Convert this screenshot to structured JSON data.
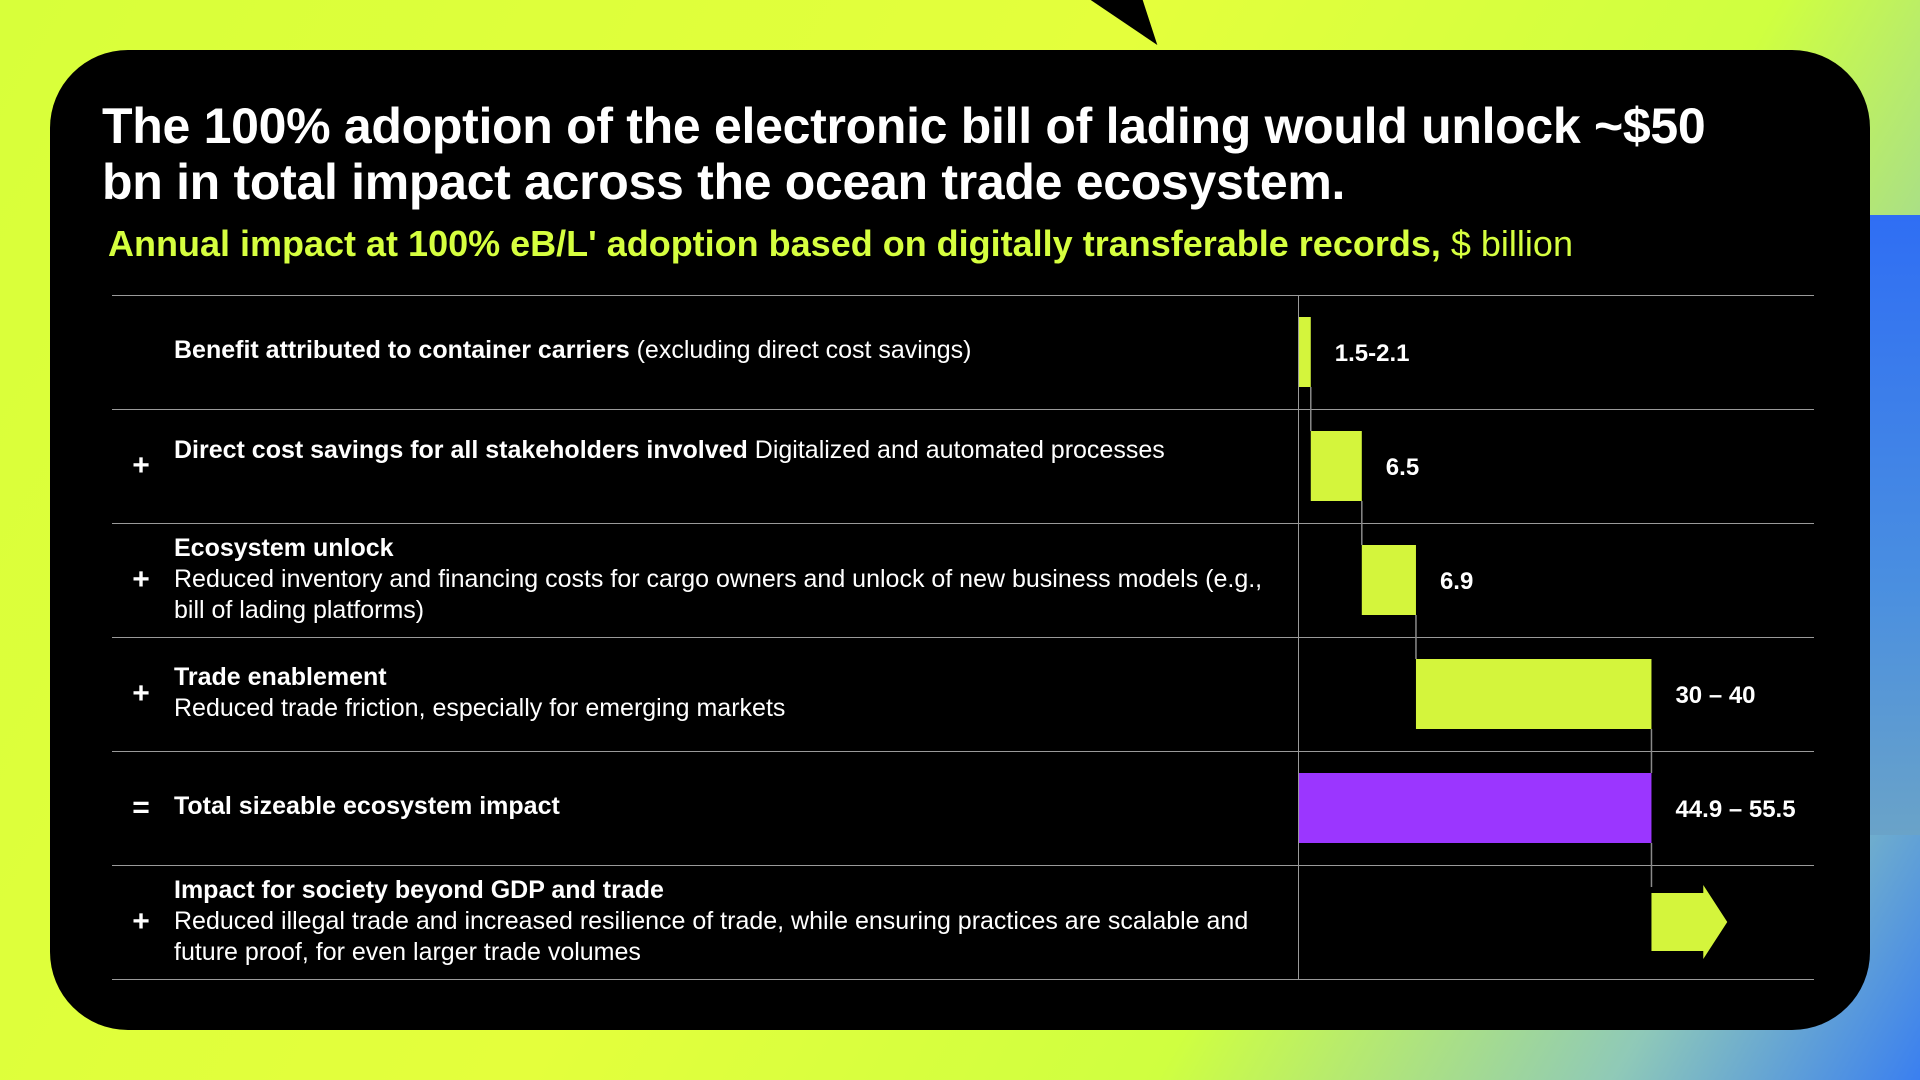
{
  "headline": "The 100% adoption of the electronic bill of lading would unlock ~$50 bn in total impact across the ocean trade ecosystem.",
  "subtitle": "Annual impact at 100% eB/L' adoption based on digitally transferable records,",
  "unit": "$ billion",
  "rows": [
    {
      "op": "",
      "title": "Benefit attributed to container carriers",
      "detail": "(excluding direct cost savings)",
      "inline": true
    },
    {
      "op": "+",
      "title": "Direct cost savings for all stakeholders involved",
      "detail": "Digitalized and automated processes",
      "inline": true
    },
    {
      "op": "+",
      "title": "Ecosystem unlock",
      "detail": "Reduced inventory and financing costs for cargo owners and unlock of new business models (e.g., bill of lading platforms)",
      "inline": false
    },
    {
      "op": "+",
      "title": "Trade enablement",
      "detail": "Reduced trade friction, especially for emerging markets",
      "inline": false
    },
    {
      "op": "=",
      "title": "Total sizeable ecosystem impact",
      "detail": "",
      "inline": true
    },
    {
      "op": "+",
      "title": "Impact for society beyond GDP and trade",
      "detail": "Reduced illegal trade and increased resilience of trade, while ensuring practices are scalable and future proof, for even larger trade volumes",
      "inline": false
    }
  ],
  "chart_data": {
    "type": "bar",
    "subtype": "waterfall",
    "categories": [
      "Benefit attributed to container carriers",
      "Direct cost savings for all stakeholders involved",
      "Ecosystem unlock",
      "Trade enablement",
      "Total sizeable ecosystem impact",
      "Impact for society beyond GDP and trade"
    ],
    "values": [
      {
        "start": 0,
        "end": 1.5,
        "label": "1.5-2.1",
        "kind": "increment"
      },
      {
        "start": 1.5,
        "end": 8.0,
        "label": "6.5",
        "kind": "increment"
      },
      {
        "start": 8.0,
        "end": 14.9,
        "label": "6.9",
        "kind": "increment"
      },
      {
        "start": 14.9,
        "end": 44.9,
        "label": "30 – 40",
        "kind": "increment"
      },
      {
        "start": 0,
        "end": 44.9,
        "label": "44.9 – 55.5",
        "kind": "total"
      },
      {
        "start": 44.9,
        "end": 51.5,
        "label": "",
        "kind": "open-arrow"
      }
    ],
    "xlim": [
      0,
      60
    ],
    "colors": {
      "increment": "#d4f53c",
      "total": "#9b36ff",
      "connector": "#8a8a8a"
    }
  }
}
